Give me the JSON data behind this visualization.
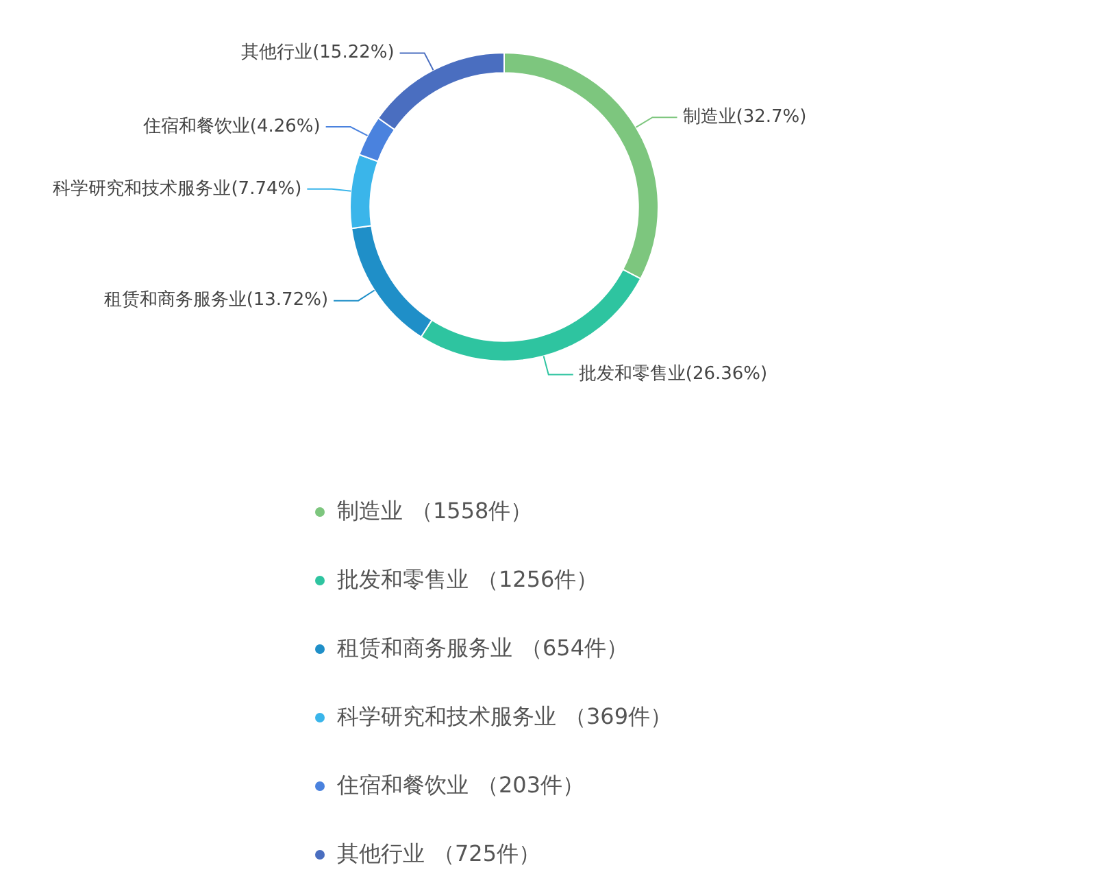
{
  "chart_data": {
    "type": "donut",
    "categories": [
      "制造业",
      "批发和零售业",
      "租赁和商务服务业",
      "科学研究和技术服务业",
      "住宿和餐饮业",
      "其他行业"
    ],
    "values": [
      32.7,
      26.36,
      13.72,
      7.74,
      4.26,
      15.22
    ],
    "value_labels": [
      "(32.7%)",
      "(26.36%)",
      "(13.72%)",
      "(7.74%)",
      "(4.26%)",
      "(15.22%)"
    ],
    "colors": [
      "#7dc67e",
      "#2ec4a0",
      "#1f8fc8",
      "#3ab5ea",
      "#4a82de",
      "#4a6ec0"
    ],
    "legend": "bottom",
    "annotations": [
      "（1558件）",
      "（1256件）",
      "（654件）",
      "（369件）",
      "（203件）",
      "（725件）"
    ]
  }
}
